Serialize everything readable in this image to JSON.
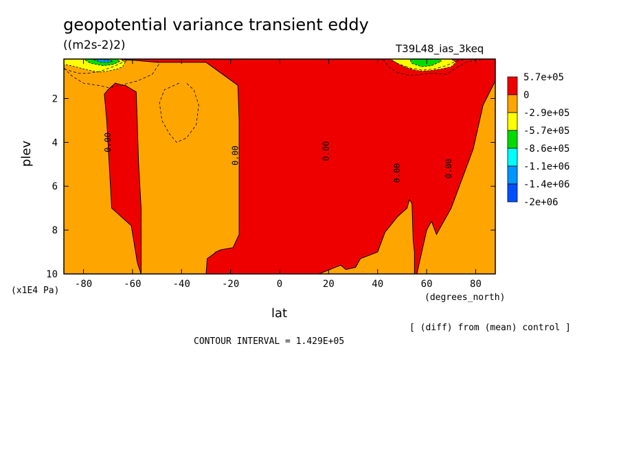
{
  "chart_data": {
    "type": "heatmap",
    "title": "geopotential variance transient eddy",
    "units": "((m2s-2)2)",
    "run_label": "T39L48_ias_3keq",
    "xlabel": "lat",
    "x_units": "(degrees_north)",
    "ylabel": "plev",
    "y_scale_label": "(x1E4 Pa)",
    "xlim": [
      -88,
      88
    ],
    "ylim": [
      10,
      0.2
    ],
    "x_ticks": [
      "-80",
      "-60",
      "-40",
      "-20",
      "0",
      "20",
      "40",
      "60",
      "80"
    ],
    "x_tick_values": [
      -80,
      -60,
      -40,
      -20,
      0,
      20,
      40,
      60,
      80
    ],
    "y_ticks": [
      "2",
      "4",
      "6",
      "8",
      "10"
    ],
    "y_tick_values": [
      2,
      4,
      6,
      8,
      10
    ],
    "legend_position": "right",
    "legend": [
      {
        "label": "5.7e+05",
        "color": "#ee0000"
      },
      {
        "label": "0",
        "color": "#ffa500"
      },
      {
        "label": "-2.9e+05",
        "color": "#ffff00"
      },
      {
        "label": "-5.7e+05",
        "color": "#00dc00"
      },
      {
        "label": "-8.6e+05",
        "color": "#00ffff"
      },
      {
        "label": "-1.1e+06",
        "color": "#0096ff"
      },
      {
        "label": "-1.4e+06",
        "color": "#0050ff"
      },
      {
        "label": "-2e+06",
        "color": ""
      }
    ],
    "zero_contour_labels": [
      {
        "text": "0.00",
        "lat": -69,
        "plev": 4.0
      },
      {
        "text": "0.00",
        "lat": -17,
        "plev": 4.6
      },
      {
        "text": "0.00",
        "lat": 20,
        "plev": 4.4
      },
      {
        "text": "0.00",
        "lat": 49,
        "plev": 5.4
      },
      {
        "text": "0.00",
        "lat": 70,
        "plev": 5.2
      }
    ],
    "positive_regions": [
      {
        "name": "southern-polar-column",
        "lat": [
          -71.5,
          -70.5,
          -68.5,
          -60.5,
          -58,
          -56.5,
          -56.5,
          -57.5,
          -58.5,
          -63,
          -64,
          -67,
          -70
        ],
        "plev": [
          1.8,
          3.0,
          7.0,
          7.8,
          9.5,
          10,
          7.0,
          5.0,
          1.7,
          1.4,
          1.4,
          1.3,
          1.6
        ]
      },
      {
        "name": "tropical-column",
        "lat": [
          -88,
          -88,
          -85,
          -70,
          -60,
          -50,
          -30,
          -17,
          -16.5,
          -16.5,
          -19,
          -24,
          -26,
          -27,
          -29.5,
          -30,
          0,
          16,
          25,
          27,
          31,
          33,
          40,
          43,
          48,
          52,
          53,
          54,
          54.5,
          55,
          55,
          56,
          60,
          62,
          64,
          67,
          70,
          75,
          79,
          83,
          88,
          88
        ],
        "plev": [
          0.2,
          0.35,
          0.3,
          0.2,
          0.25,
          0.35,
          0.35,
          1.4,
          3.0,
          8.2,
          8.8,
          8.9,
          9.0,
          9.1,
          9.3,
          10,
          10,
          10,
          9.6,
          9.8,
          9.7,
          9.3,
          9.0,
          8.1,
          7.4,
          7.0,
          6.6,
          6.8,
          8.5,
          9.0,
          10,
          10,
          8.0,
          7.6,
          8.2,
          7.6,
          7.0,
          5.5,
          4.3,
          2.3,
          1.2,
          0.2
        ]
      }
    ],
    "negative_regions": [
      {
        "name": "southern-upper-minimum",
        "lat": [
          -88,
          -85,
          -80,
          -75,
          -70,
          -65,
          -63,
          -64,
          -66,
          -70,
          -74,
          -80,
          -85,
          -88
        ],
        "plev": [
          0.2,
          0.2,
          0.2,
          0.2,
          0.2,
          0.2,
          0.35,
          0.55,
          0.65,
          0.75,
          0.8,
          0.65,
          0.5,
          0.45
        ],
        "color": "#ffff00"
      },
      {
        "name": "southern-upper-core",
        "lat": [
          -80,
          -77,
          -72,
          -67,
          -65,
          -68,
          -72,
          -77
        ],
        "plev": [
          0.2,
          0.2,
          0.2,
          0.2,
          0.3,
          0.45,
          0.5,
          0.4
        ],
        "color": "#00dc00"
      },
      {
        "name": "southern-upper-center",
        "lat": [
          -76,
          -73,
          -70,
          -68,
          -70,
          -73
        ],
        "plev": [
          0.22,
          0.22,
          0.24,
          0.3,
          0.36,
          0.34
        ],
        "color": "#0096ff"
      },
      {
        "name": "northern-upper-minimum",
        "lat": [
          45,
          50,
          55,
          60,
          65,
          70,
          72,
          70,
          66,
          62,
          58,
          55,
          52,
          49
        ],
        "plev": [
          0.2,
          0.2,
          0.2,
          0.2,
          0.2,
          0.2,
          0.35,
          0.55,
          0.65,
          0.72,
          0.75,
          0.7,
          0.6,
          0.45
        ],
        "color": "#ffff00"
      },
      {
        "name": "northern-upper-core",
        "lat": [
          53,
          57,
          61,
          65,
          66,
          62,
          58,
          54
        ],
        "plev": [
          0.2,
          0.2,
          0.2,
          0.2,
          0.3,
          0.5,
          0.55,
          0.4
        ],
        "color": "#00dc00"
      }
    ],
    "dashed_contours": [
      {
        "name": "southern-dashed-outer",
        "lat": [
          -88,
          -85,
          -80,
          -74,
          -70,
          -65,
          -58,
          -52,
          -49,
          -51,
          -56,
          -60,
          -63,
          -68,
          -73,
          -78,
          -82,
          -85,
          -88
        ],
        "plev": [
          0.6,
          0.95,
          1.3,
          1.4,
          1.5,
          1.4,
          1.2,
          0.9,
          0.4,
          0.2,
          0.2,
          0.2,
          0.3,
          0.55,
          0.75,
          0.85,
          0.85,
          0.75,
          0.65
        ]
      },
      {
        "name": "mid-latitude-closed",
        "lat": [
          -41,
          -47,
          -49,
          -48,
          -45,
          -42,
          -38,
          -34,
          -33,
          -35,
          -38
        ],
        "plev": [
          1.3,
          1.6,
          2.2,
          3.0,
          3.6,
          4.0,
          3.8,
          3.2,
          2.3,
          1.6,
          1.3
        ]
      },
      {
        "name": "northern-dashed-outer",
        "lat": [
          42,
          45,
          48,
          53,
          58,
          63,
          68,
          72,
          76,
          80,
          83,
          76,
          72,
          68,
          63,
          58,
          53,
          48,
          45
        ],
        "plev": [
          0.2,
          0.6,
          0.8,
          0.95,
          0.9,
          0.85,
          0.9,
          0.6,
          0.35,
          0.25,
          0.2,
          0.2,
          0.3,
          0.5,
          0.65,
          0.7,
          0.6,
          0.4,
          0.2
        ]
      }
    ]
  },
  "labels": {
    "title": "geopotential variance transient eddy",
    "units": "((m2s-2)2)",
    "run": "T39L48_ias_3keq",
    "plev_scale": "(x1E4 Pa)",
    "x_unit": "(degrees_north)",
    "xlabel": "lat",
    "ylabel": "plev",
    "diff_note": "[ (diff) from (mean) control ]",
    "contour_interval": "CONTOUR INTERVAL = 1.429E+05"
  },
  "colors": {
    "positive": "#ee0000",
    "zero_to_neg": "#ffa500",
    "lowest": "#0050ff"
  }
}
